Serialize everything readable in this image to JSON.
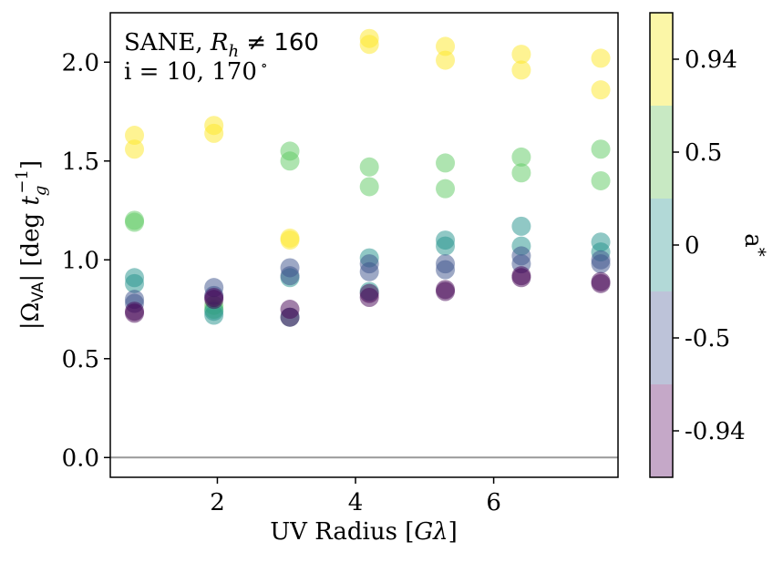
{
  "chart_data": {
    "type": "scatter",
    "annotation": {
      "line1_prefix": "SANE, ",
      "line1_math_var": "R",
      "line1_math_sub": "h",
      "line1_math_rest": " ≠ 160",
      "line2": "i = 10, 170",
      "line2_degree": "∘"
    },
    "xlabel": {
      "prefix": "UV Radius  [",
      "math": "Gλ",
      "suffix": "]"
    },
    "ylabel": {
      "open": "|Ω",
      "sub": "VA",
      "close": "| [deg ",
      "tvar": "t",
      "tsub": "g",
      "tsup": "−1",
      "end": "]"
    },
    "xlim": [
      0.45,
      7.8
    ],
    "ylim": [
      -0.1,
      2.25
    ],
    "xticks": [
      2,
      4,
      6
    ],
    "xtick_labels": [
      "2",
      "4",
      "6"
    ],
    "yticks": [
      0.0,
      0.5,
      1.0,
      1.5,
      2.0
    ],
    "ytick_labels": [
      "0.0",
      "0.5",
      "1.0",
      "1.5",
      "2.0"
    ],
    "reference_line": {
      "y": 0.0,
      "color": "#999999"
    },
    "colorbar": {
      "label": "a",
      "label_sub": "*",
      "bins": [
        {
          "label": "0.94",
          "color": "#fbf6a7"
        },
        {
          "label": "0.5",
          "color": "#c8e9c3"
        },
        {
          "label": "0",
          "color": "#b2d9d7"
        },
        {
          "label": "-0.5",
          "color": "#bdc3d9"
        },
        {
          "label": "-0.94",
          "color": "#c5a8c8"
        }
      ]
    },
    "point_alpha": 0.5,
    "series": [
      {
        "name": "0.94",
        "color": "#fde725",
        "x": [
          0.8,
          0.8,
          1.95,
          1.95,
          3.05,
          3.05,
          4.2,
          4.2,
          5.3,
          5.3,
          6.4,
          6.4,
          7.55,
          7.55
        ],
        "y": [
          1.63,
          1.56,
          1.68,
          1.64,
          1.11,
          1.1,
          2.12,
          2.09,
          2.08,
          2.01,
          2.04,
          1.96,
          2.02,
          1.86
        ]
      },
      {
        "name": "0.5",
        "color": "#5ec962",
        "x": [
          0.8,
          0.8,
          1.95,
          1.95,
          3.05,
          3.05,
          4.2,
          4.2,
          5.3,
          5.3,
          6.4,
          6.4,
          7.55,
          7.55
        ],
        "y": [
          1.2,
          1.19,
          0.77,
          0.75,
          1.55,
          1.5,
          1.47,
          1.37,
          1.49,
          1.36,
          1.52,
          1.44,
          1.56,
          1.4
        ]
      },
      {
        "name": "0",
        "color": "#21918c",
        "x": [
          0.8,
          0.8,
          1.95,
          1.95,
          3.05,
          3.05,
          4.2,
          4.2,
          5.3,
          5.3,
          6.4,
          6.4,
          7.55,
          7.55
        ],
        "y": [
          0.91,
          0.88,
          0.74,
          0.72,
          0.91,
          0.71,
          1.01,
          0.84,
          1.1,
          1.07,
          1.17,
          1.07,
          1.09,
          1.04
        ]
      },
      {
        "name": "-0.5",
        "color": "#3b528b",
        "x": [
          0.8,
          0.8,
          1.95,
          1.95,
          3.05,
          3.05,
          4.2,
          4.2,
          5.3,
          5.3,
          6.4,
          6.4,
          7.55,
          7.55
        ],
        "y": [
          0.8,
          0.78,
          0.86,
          0.82,
          0.96,
          0.92,
          0.98,
          0.94,
          0.98,
          0.95,
          1.02,
          0.98,
          1.0,
          0.98
        ]
      },
      {
        "name": "-0.94",
        "color": "#440154",
        "x": [
          0.8,
          0.8,
          1.95,
          1.95,
          3.05,
          3.05,
          4.2,
          4.2,
          5.3,
          5.3,
          6.4,
          6.4,
          7.55,
          7.55
        ],
        "y": [
          0.74,
          0.73,
          0.81,
          0.8,
          0.75,
          0.71,
          0.83,
          0.81,
          0.85,
          0.84,
          0.92,
          0.91,
          0.89,
          0.88
        ]
      }
    ]
  }
}
